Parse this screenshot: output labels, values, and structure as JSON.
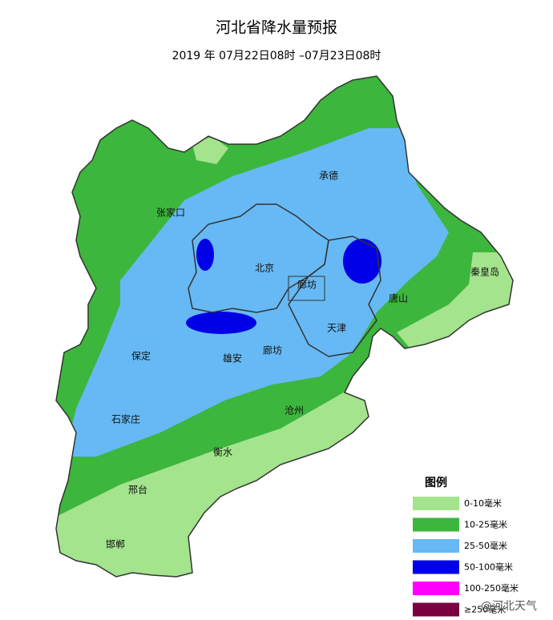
{
  "header": {
    "title": "河北省降水量预报",
    "subtitle": "2019 年 07月22日08时 –07月23日08时"
  },
  "cities": [
    {
      "label": "张家口"
    },
    {
      "label": "承德"
    },
    {
      "label": "北京"
    },
    {
      "label": "廊坊"
    },
    {
      "label": "天津"
    },
    {
      "label": "唐山"
    },
    {
      "label": "秦皇岛"
    },
    {
      "label": "保定"
    },
    {
      "label": "雄安"
    },
    {
      "label": "廊坊"
    },
    {
      "label": "沧州"
    },
    {
      "label": "石家庄"
    },
    {
      "label": "衡水"
    },
    {
      "label": "邢台"
    },
    {
      "label": "邯郸"
    }
  ],
  "legend": {
    "title": "图例",
    "items": [
      {
        "label": "0-10毫米",
        "color": "#a3e48c"
      },
      {
        "label": "10-25毫米",
        "color": "#3cb63c"
      },
      {
        "label": "25-50毫米",
        "color": "#66b9f4"
      },
      {
        "label": "50-100毫米",
        "color": "#0000e6"
      },
      {
        "label": "100-250毫米",
        "color": "#ff00ff"
      },
      {
        "label": "≥250毫米",
        "color": "#7a0040"
      }
    ]
  },
  "watermark": "@河北天气"
}
